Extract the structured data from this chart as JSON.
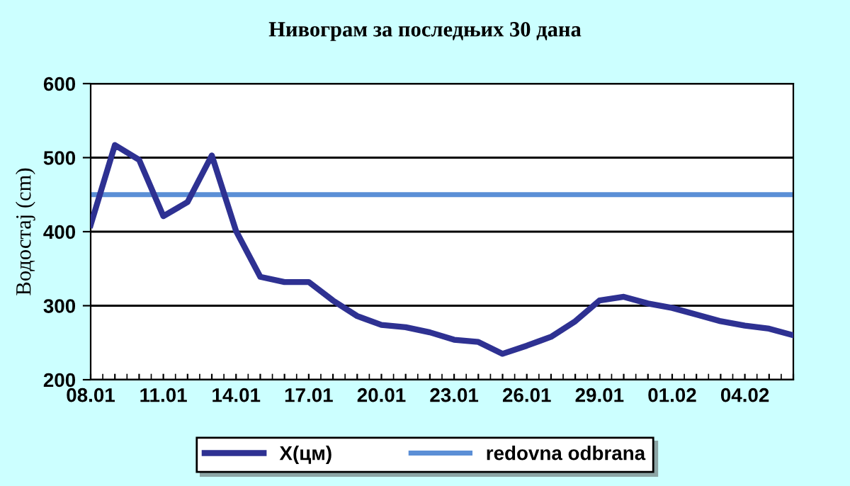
{
  "chart_data": {
    "type": "line",
    "title": "Нивограм за последњих 30 дана",
    "ylabel": "Водостај (cm)",
    "categories": [
      "08.01",
      null,
      null,
      "11.01",
      null,
      null,
      "14.01",
      null,
      null,
      "17.01",
      null,
      null,
      "20.01",
      null,
      null,
      "23.01",
      null,
      null,
      "26.01",
      null,
      null,
      "29.01",
      null,
      null,
      "01.02",
      null,
      null,
      "04.02",
      null,
      null
    ],
    "series": [
      {
        "name": "X(цм)",
        "color": "#2e3192",
        "values": [
          409,
          517,
          497,
          421,
          440,
          503,
          401,
          339,
          332,
          332,
          307,
          286,
          274,
          271,
          264,
          254,
          251,
          235,
          246,
          258,
          279,
          307,
          312,
          303,
          297,
          288,
          279,
          273,
          269,
          260
        ]
      }
    ],
    "ref_lines": [
      {
        "axis": "y",
        "value": 450,
        "label": "redovna odbrana",
        "color": "#5b8fd6"
      }
    ],
    "ylim": [
      200,
      600
    ],
    "yticks": [
      200,
      300,
      400,
      500,
      600
    ],
    "grid": "y",
    "legend": "bottom",
    "marker": "none",
    "line_style": "solid"
  }
}
